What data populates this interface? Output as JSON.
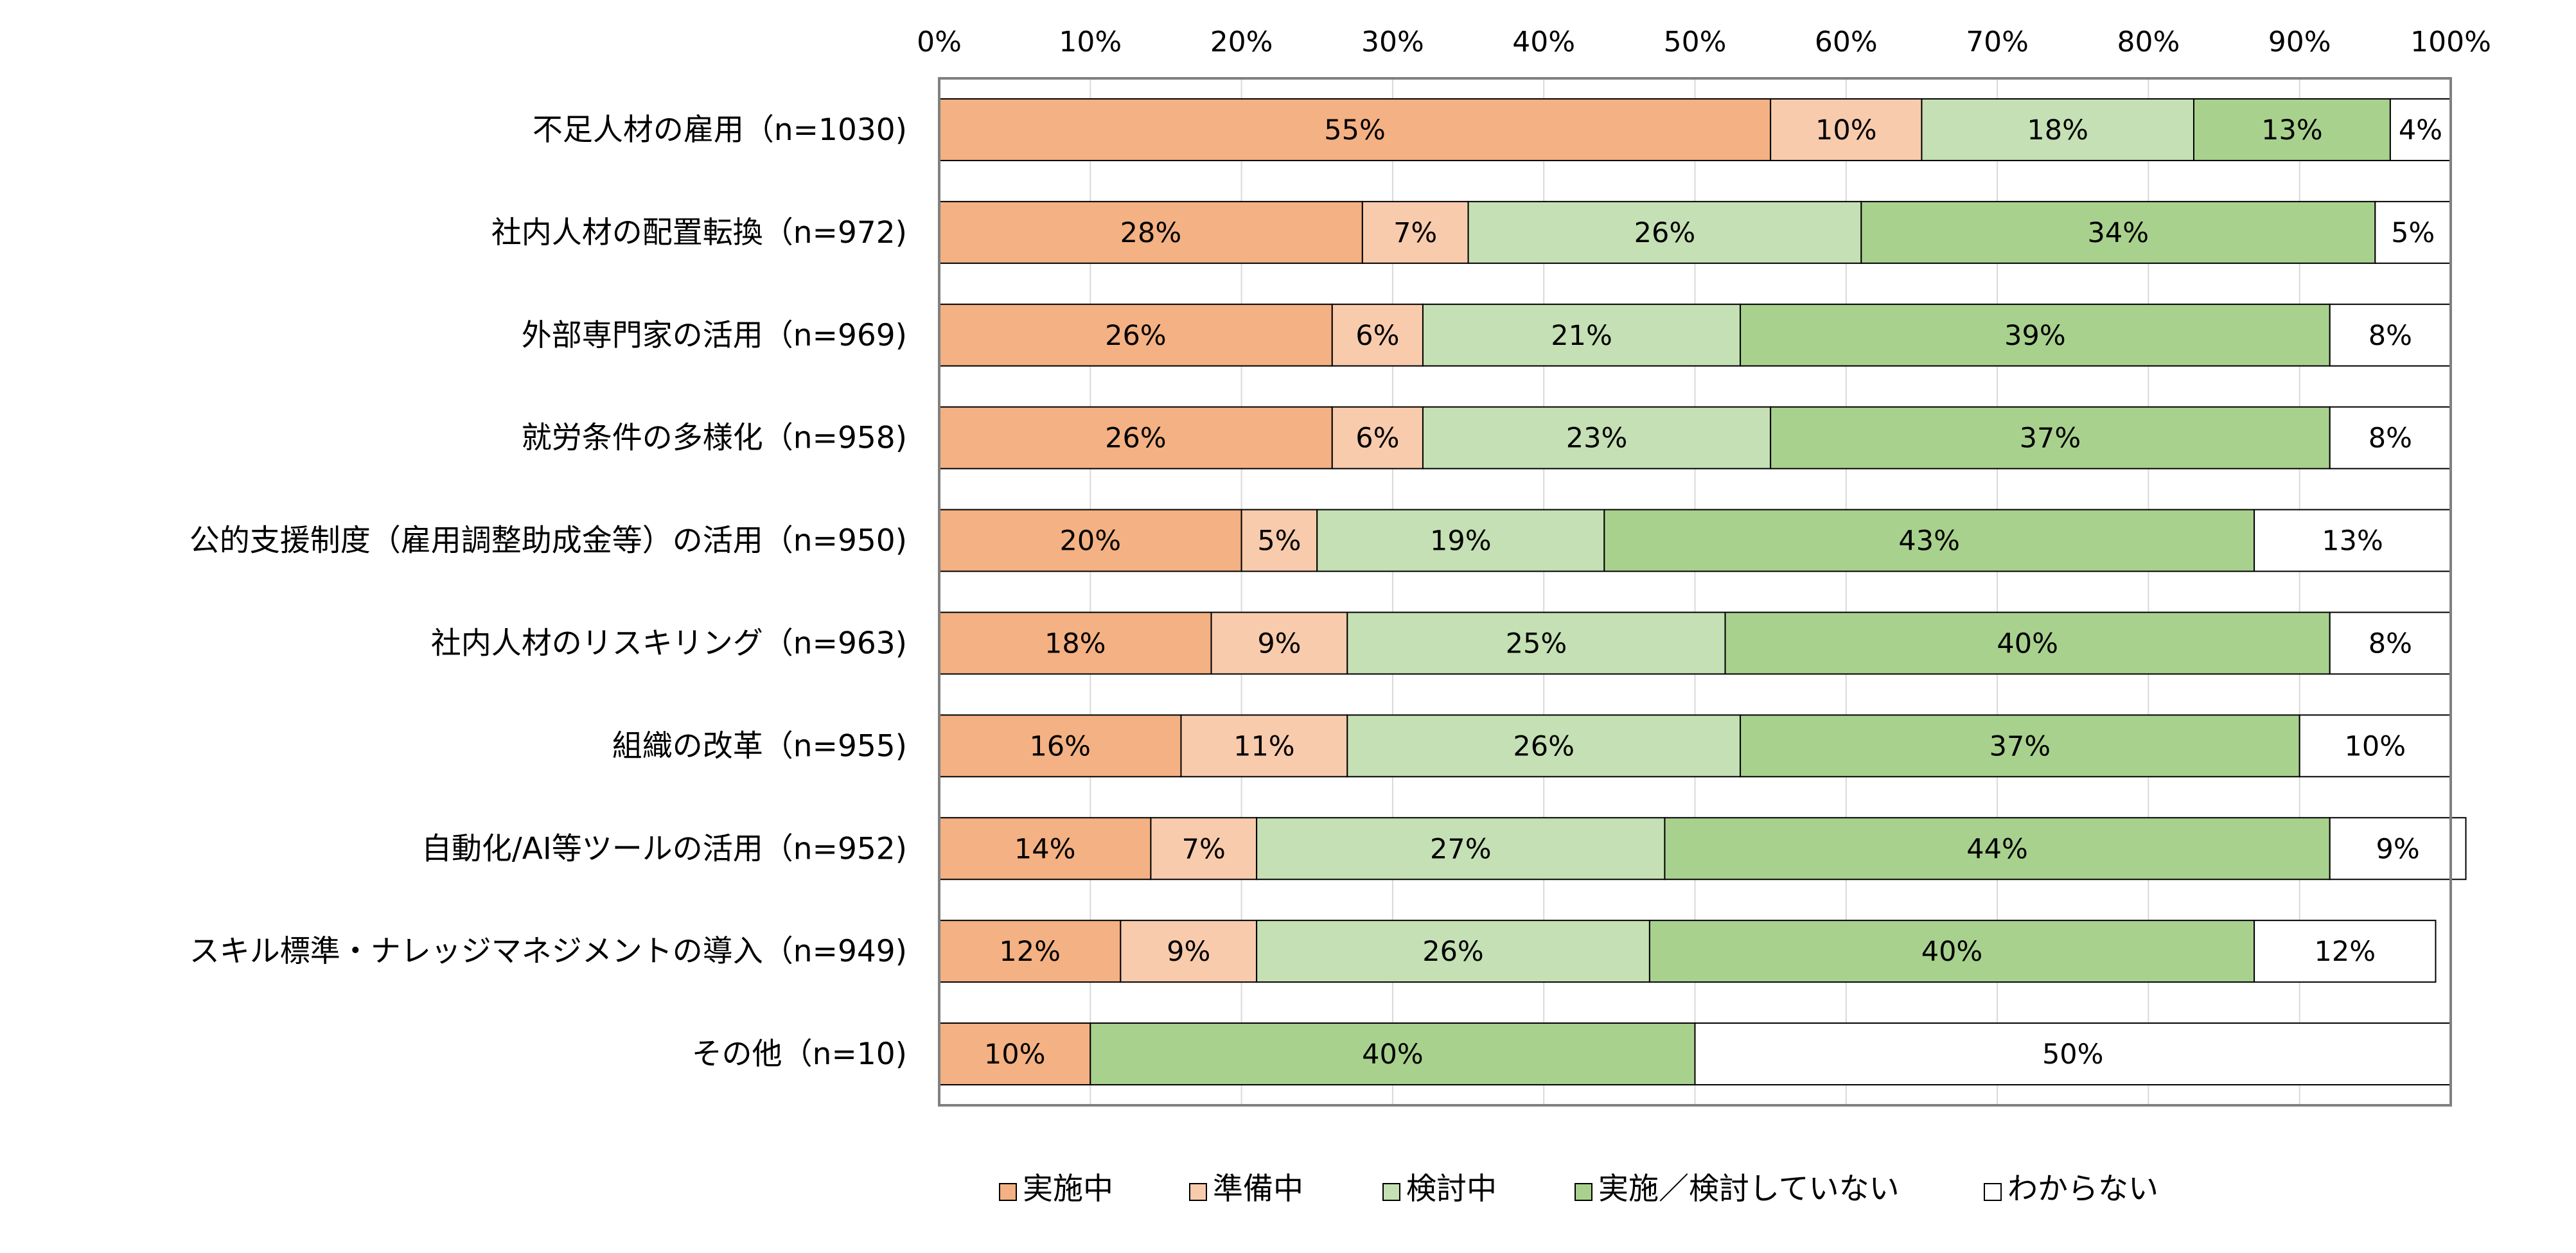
{
  "chart_data": {
    "type": "bar",
    "orientation": "horizontal",
    "stacked": true,
    "percent_stacked": true,
    "xlim": [
      0,
      100
    ],
    "x_ticks": [
      "0%",
      "10%",
      "20%",
      "30%",
      "40%",
      "50%",
      "60%",
      "70%",
      "80%",
      "90%",
      "100%"
    ],
    "grid": true,
    "legend_position": "bottom",
    "categories": [
      "不足人材の雇用（n=1030)",
      "社内人材の配置転換（n=972)",
      "外部専門家の活用（n=969)",
      "就労条件の多様化（n=958)",
      "公的支援制度（雇用調整助成金等）の活用（n=950)",
      "社内人材のリスキリング（n=963)",
      "組織の改革（n=955)",
      "自動化/AI等ツールの活用（n=952)",
      "スキル標準・ナレッジマネジメントの導入（n=949)",
      "その他（n=10)"
    ],
    "series": [
      {
        "name": "実施中",
        "color": "#F4B183",
        "values": [
          55,
          28,
          26,
          26,
          20,
          18,
          16,
          14,
          12,
          10
        ],
        "labels": [
          "55%",
          "28%",
          "26%",
          "26%",
          "20%",
          "18%",
          "16%",
          "14%",
          "12%",
          "10%"
        ]
      },
      {
        "name": "準備中",
        "color": "#F8CBAD",
        "values": [
          10,
          7,
          6,
          6,
          5,
          9,
          11,
          7,
          9,
          0
        ],
        "labels": [
          "10%",
          "7%",
          "6%",
          "6%",
          "5%",
          "9%",
          "11%",
          "7%",
          "9%",
          ""
        ]
      },
      {
        "name": "検討中",
        "color": "#C5E0B4",
        "values": [
          18,
          26,
          21,
          23,
          19,
          25,
          26,
          27,
          26,
          0
        ],
        "labels": [
          "18%",
          "26%",
          "21%",
          "23%",
          "19%",
          "25%",
          "26%",
          "27%",
          "26%",
          ""
        ]
      },
      {
        "name": "実施／検討していない",
        "color": "#A9D18E",
        "values": [
          13,
          34,
          39,
          37,
          43,
          40,
          37,
          44,
          40,
          40
        ],
        "labels": [
          "13%",
          "34%",
          "39%",
          "37%",
          "43%",
          "40%",
          "37%",
          "44%",
          "40%",
          "40%"
        ]
      },
      {
        "name": "わからない",
        "color": "#FFFFFF",
        "values": [
          4,
          5,
          8,
          8,
          13,
          8,
          10,
          9,
          12,
          50
        ],
        "labels": [
          "4%",
          "5%",
          "8%",
          "8%",
          "13%",
          "8%",
          "10%",
          "9%",
          "12%",
          "50%"
        ]
      }
    ]
  }
}
